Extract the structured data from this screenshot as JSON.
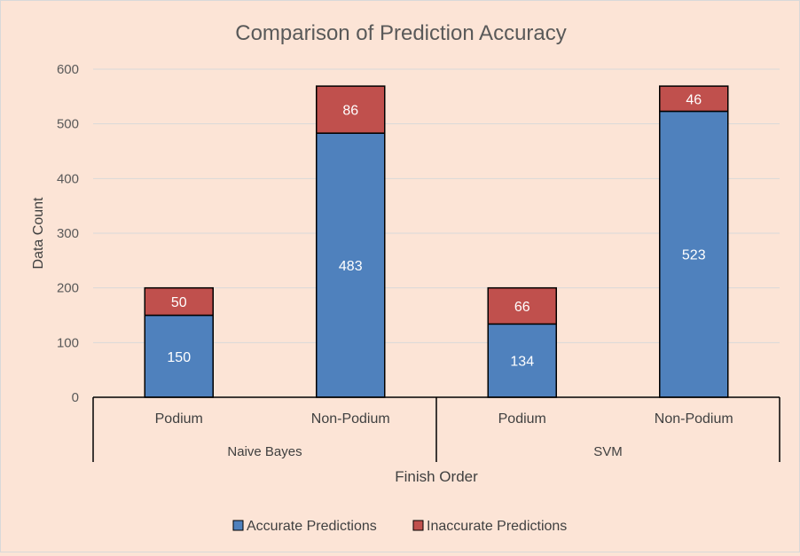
{
  "chart_data": {
    "type": "bar",
    "stacked": true,
    "title": "Comparison of Prediction Accuracy",
    "xlabel": "Finish Order",
    "ylabel": "Data Count",
    "ylim": [
      0,
      600
    ],
    "yticks": [
      0,
      100,
      200,
      300,
      400,
      500,
      600
    ],
    "grid": true,
    "legend_position": "bottom",
    "groups": [
      {
        "label": "Naive Bayes",
        "categories": [
          "Podium",
          "Non-Podium"
        ]
      },
      {
        "label": "SVM",
        "categories": [
          "Podium",
          "Non-Podium"
        ]
      }
    ],
    "categories": [
      "Podium",
      "Non-Podium",
      "Podium",
      "Non-Podium"
    ],
    "series": [
      {
        "name": "Accurate Predictions",
        "color": "#4f81bd",
        "values": [
          150,
          483,
          134,
          523
        ]
      },
      {
        "name": "Inaccurate Predictions",
        "color": "#c0504d",
        "values": [
          50,
          86,
          66,
          46
        ]
      }
    ]
  }
}
